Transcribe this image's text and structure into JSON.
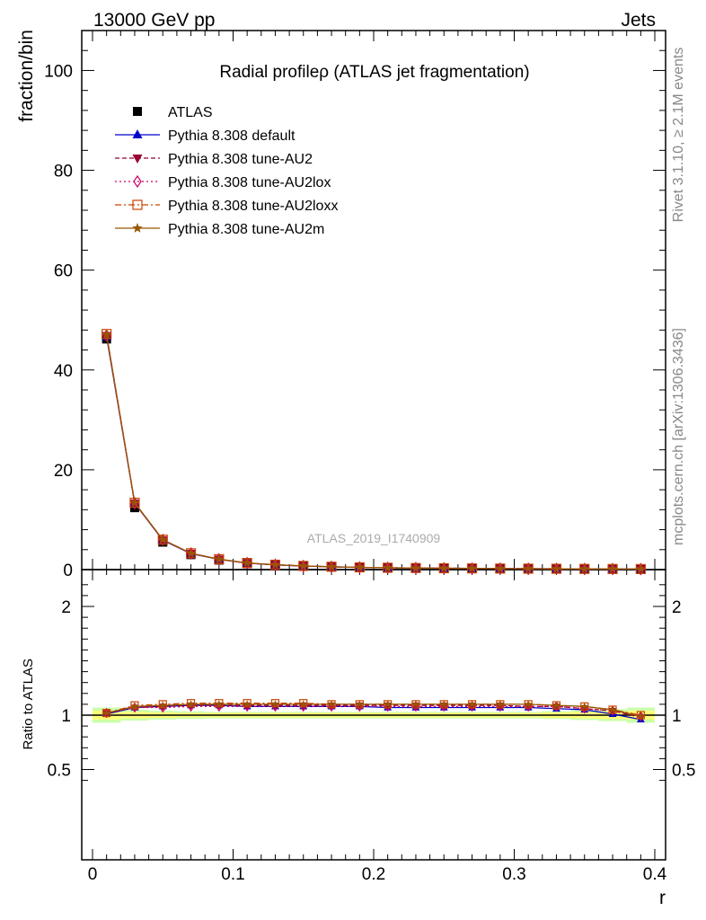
{
  "header": {
    "left": "13000 GeV pp",
    "right": "Jets"
  },
  "side": {
    "rivet": "Rivet 3.1.10, ≥ 2.1M events",
    "mcplots": "mcplots.cern.ch [arXiv:1306.3436]"
  },
  "analysis_label": "ATLAS_2019_I1740909",
  "chart_data": [
    {
      "type": "line",
      "panel": "main",
      "title": "Radial profileρ (ATLAS jet fragmentation)",
      "xlabel": "r",
      "ylabel": "fraction/bin",
      "xlim": [
        -0.01,
        0.4
      ],
      "ylim": [
        0,
        108
      ],
      "yticks": [
        0,
        20,
        40,
        60,
        80,
        100
      ],
      "xticks": [
        0,
        0.1,
        0.2,
        0.3,
        0.4
      ],
      "x": [
        0.01,
        0.03,
        0.05,
        0.07,
        0.09,
        0.11,
        0.13,
        0.15,
        0.17,
        0.19,
        0.21,
        0.23,
        0.25,
        0.27,
        0.29,
        0.31,
        0.33,
        0.35,
        0.37,
        0.39
      ],
      "legend_position": "top-left",
      "series": [
        {
          "name": "ATLAS",
          "color": "#000000",
          "marker": "square",
          "line": "none",
          "values": [
            46.2,
            12.4,
            5.5,
            3.0,
            1.9,
            1.2,
            0.88,
            0.66,
            0.52,
            0.41,
            0.34,
            0.29,
            0.25,
            0.22,
            0.19,
            0.17,
            0.15,
            0.13,
            0.12,
            0.11
          ]
        },
        {
          "name": "Pythia 8.308 default",
          "color": "#0000cc",
          "marker": "triangle-up",
          "line": "solid",
          "values": [
            46.7,
            13.3,
            5.9,
            3.2,
            2.05,
            1.29,
            0.95,
            0.71,
            0.56,
            0.44,
            0.36,
            0.31,
            0.27,
            0.235,
            0.205,
            0.183,
            0.16,
            0.137,
            0.122,
            0.106
          ]
        },
        {
          "name": "Pythia 8.308 tune-AU2",
          "color": "#990033",
          "marker": "triangle-down",
          "line": "dashed",
          "values": [
            46.9,
            13.3,
            5.95,
            3.25,
            2.07,
            1.31,
            0.96,
            0.72,
            0.565,
            0.445,
            0.365,
            0.315,
            0.272,
            0.238,
            0.207,
            0.185,
            0.162,
            0.138,
            0.124,
            0.109
          ]
        },
        {
          "name": "Pythia 8.308 tune-AU2lox",
          "color": "#cc0066",
          "marker": "diamond-open",
          "line": "dotted",
          "values": [
            46.9,
            13.3,
            5.95,
            3.25,
            2.08,
            1.32,
            0.97,
            0.725,
            0.568,
            0.447,
            0.368,
            0.317,
            0.274,
            0.24,
            0.208,
            0.186,
            0.163,
            0.139,
            0.125,
            0.109
          ]
        },
        {
          "name": "Pythia 8.308 tune-AU2loxx",
          "color": "#cc4400",
          "marker": "square-open",
          "line": "dashdot",
          "values": [
            47.2,
            13.4,
            6.0,
            3.27,
            2.09,
            1.33,
            0.98,
            0.73,
            0.57,
            0.449,
            0.37,
            0.318,
            0.275,
            0.242,
            0.21,
            0.187,
            0.164,
            0.14,
            0.126,
            0.11
          ]
        },
        {
          "name": "Pythia 8.308 tune-AU2m",
          "color": "#995500",
          "marker": "star",
          "line": "solid",
          "values": [
            47.1,
            13.4,
            6.0,
            3.26,
            2.08,
            1.32,
            0.97,
            0.73,
            0.57,
            0.448,
            0.369,
            0.318,
            0.275,
            0.241,
            0.209,
            0.186,
            0.163,
            0.139,
            0.125,
            0.109
          ]
        }
      ]
    },
    {
      "type": "line",
      "panel": "ratio",
      "xlabel": "r",
      "ylabel": "Ratio to ATLAS",
      "xlim": [
        -0.01,
        0.4
      ],
      "ylim": [
        0.35,
        2.25
      ],
      "yticks": [
        0.5,
        1,
        2
      ],
      "x": [
        0.01,
        0.03,
        0.05,
        0.07,
        0.09,
        0.11,
        0.13,
        0.15,
        0.17,
        0.19,
        0.21,
        0.23,
        0.25,
        0.27,
        0.29,
        0.31,
        0.33,
        0.35,
        0.37,
        0.39
      ],
      "band_colors": {
        "inner": "#ffff77",
        "outer": "#ccffaa"
      },
      "band": {
        "x_edges": [
          0.0,
          0.02,
          0.04,
          0.06,
          0.08,
          0.1,
          0.12,
          0.14,
          0.16,
          0.18,
          0.2,
          0.22,
          0.24,
          0.26,
          0.28,
          0.3,
          0.32,
          0.34,
          0.36,
          0.38,
          0.4
        ],
        "inner": [
          0.04,
          0.03,
          0.025,
          0.02,
          0.02,
          0.02,
          0.02,
          0.02,
          0.02,
          0.02,
          0.02,
          0.02,
          0.02,
          0.02,
          0.02,
          0.02,
          0.025,
          0.03,
          0.035,
          0.04
        ],
        "outer": [
          0.07,
          0.05,
          0.04,
          0.035,
          0.03,
          0.03,
          0.03,
          0.03,
          0.03,
          0.03,
          0.03,
          0.03,
          0.03,
          0.03,
          0.03,
          0.03,
          0.035,
          0.045,
          0.055,
          0.07
        ]
      },
      "series": [
        {
          "name": "Pythia 8.308 default",
          "color": "#0000cc",
          "marker": "triangle-up",
          "line": "solid",
          "values": [
            1.01,
            1.07,
            1.08,
            1.09,
            1.09,
            1.08,
            1.08,
            1.08,
            1.08,
            1.08,
            1.07,
            1.07,
            1.07,
            1.07,
            1.07,
            1.07,
            1.06,
            1.05,
            1.01,
            0.96
          ]
        },
        {
          "name": "Pythia 8.308 tune-AU2",
          "color": "#990033",
          "marker": "triangle-down",
          "line": "dashed",
          "values": [
            1.02,
            1.07,
            1.08,
            1.09,
            1.09,
            1.09,
            1.09,
            1.09,
            1.09,
            1.09,
            1.09,
            1.09,
            1.09,
            1.09,
            1.09,
            1.08,
            1.08,
            1.06,
            1.04,
            0.98
          ]
        },
        {
          "name": "Pythia 8.308 tune-AU2lox",
          "color": "#cc0066",
          "marker": "diamond-open",
          "line": "dotted",
          "values": [
            1.02,
            1.07,
            1.07,
            1.08,
            1.08,
            1.08,
            1.08,
            1.08,
            1.08,
            1.08,
            1.08,
            1.08,
            1.08,
            1.08,
            1.08,
            1.08,
            1.08,
            1.06,
            1.04,
            0.99
          ]
        },
        {
          "name": "Pythia 8.308 tune-AU2loxx",
          "color": "#cc4400",
          "marker": "square-open",
          "line": "dashdot",
          "values": [
            1.02,
            1.09,
            1.1,
            1.11,
            1.11,
            1.11,
            1.11,
            1.11,
            1.1,
            1.1,
            1.1,
            1.1,
            1.1,
            1.1,
            1.1,
            1.1,
            1.09,
            1.08,
            1.05,
            1.0
          ]
        },
        {
          "name": "Pythia 8.308 tune-AU2m",
          "color": "#995500",
          "marker": "star",
          "line": "solid",
          "values": [
            1.02,
            1.08,
            1.09,
            1.1,
            1.1,
            1.1,
            1.1,
            1.1,
            1.1,
            1.1,
            1.1,
            1.1,
            1.1,
            1.1,
            1.1,
            1.1,
            1.09,
            1.08,
            1.05,
            0.99
          ]
        }
      ]
    }
  ]
}
